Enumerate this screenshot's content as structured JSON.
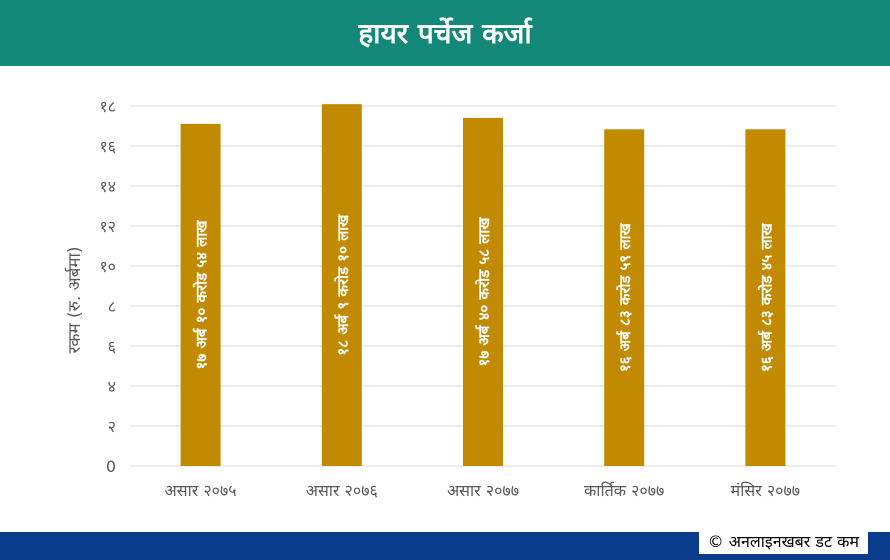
{
  "title": "हायर पर्चेज कर्जा",
  "credit": "© अनलाइनखबर डट कम",
  "colors": {
    "header": "#138778",
    "footer": "#0b3c8c",
    "bar": "#c18a00",
    "grid": "#d9d9d9",
    "tick_text": "#595959"
  },
  "chart_data": {
    "type": "bar",
    "ylabel": "रकम (रु. अर्बमा)",
    "ylim": [
      0,
      18
    ],
    "yticks": [
      0,
      2,
      4,
      6,
      8,
      10,
      12,
      14,
      16,
      18
    ],
    "ytick_labels": [
      "0",
      "२",
      "४",
      "६",
      "८",
      "१०",
      "१२",
      "१४",
      "१६",
      "१८"
    ],
    "grid": true,
    "categories": [
      "असार २०७५",
      "असार २०७६",
      "असार २०७७",
      "कार्तिक २०७७",
      "मंसिर २०७७"
    ],
    "values": [
      17.1054,
      18.091,
      17.4058,
      16.8359,
      16.8345
    ],
    "data_labels": [
      "१७ अर्ब १० करोड ५४ लाख",
      "१८ अर्ब ९ करोड १० लाख",
      "१७ अर्ब ४० करोड ५८ लाख",
      "१६ अर्ब ८३ करोड ५९ लाख",
      "१६ अर्ब ८३ करोड ४५ लाख"
    ]
  }
}
